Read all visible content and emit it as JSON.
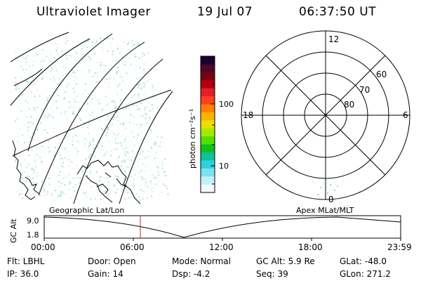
{
  "header": {
    "title": "Ultraviolet Imager",
    "date": "19 Jul 07",
    "time": "06:37:50 UT"
  },
  "colorbar": {
    "unit_label": "photon cm⁻²s⁻¹",
    "ticks": [
      "100",
      "10"
    ],
    "colors": [
      "#1a0030",
      "#4a0a2a",
      "#7a0010",
      "#b00010",
      "#e0202a",
      "#ff4020",
      "#ff8000",
      "#ffb000",
      "#e8e000",
      "#a8e800",
      "#50e000",
      "#10c020",
      "#10c0a0",
      "#30d0e0",
      "#80e0f0",
      "#c0f0f8",
      "#f4f8fc"
    ]
  },
  "polar": {
    "mlt_labels": {
      "top": "12",
      "bottom": "0",
      "left": "18",
      "right": "6"
    },
    "lat_labels": [
      "60",
      "70",
      "80"
    ]
  },
  "timeline": {
    "left_label": "Geographic Lat/Lon",
    "right_label": "Apex  MLat/MLT",
    "y_axis_label": "GC Alt",
    "y_ticks": [
      "9.0",
      "1.8"
    ],
    "x_ticks": [
      "00:00",
      "06:00",
      "12:00",
      "18:00",
      "23:59"
    ],
    "marker_color": "#c02020"
  },
  "footer": {
    "filter": "Flt: LBHL",
    "door": "Door: Open",
    "mode": "Mode: Normal",
    "gc_alt": "GC Alt: 5.9 Re",
    "glat": "GLat: -48.0",
    "ip": "IP: 36.0",
    "gain": "Gain: 14",
    "dsp": "Dsp:    -4.2",
    "seq": "Seq: 39",
    "glon": "GLon: 271.2"
  }
}
